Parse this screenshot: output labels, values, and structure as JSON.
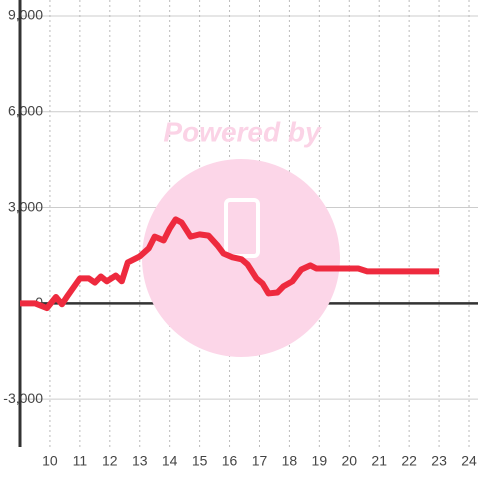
{
  "chart_data": {
    "type": "line",
    "watermark": "Powered by",
    "x": [
      9.0,
      9.5,
      9.9,
      10.2,
      10.4,
      10.6,
      11.0,
      11.3,
      11.5,
      11.7,
      11.9,
      12.2,
      12.4,
      12.6,
      13.0,
      13.3,
      13.5,
      13.8,
      14.0,
      14.2,
      14.4,
      14.7,
      15.0,
      15.3,
      15.6,
      15.8,
      16.1,
      16.4,
      16.6,
      16.9,
      17.1,
      17.3,
      17.6,
      17.8,
      18.1,
      18.4,
      18.7,
      18.9,
      19.5,
      20.0,
      20.3,
      20.6,
      21.0,
      22.0,
      23.0
    ],
    "series": [
      {
        "color": "#ee2a3e",
        "values": [
          0,
          0,
          -150,
          200,
          -30,
          250,
          780,
          780,
          650,
          840,
          690,
          870,
          690,
          1280,
          1470,
          1720,
          2090,
          1970,
          2340,
          2630,
          2530,
          2090,
          2160,
          2120,
          1810,
          1560,
          1440,
          1380,
          1220,
          780,
          625,
          310,
          340,
          530,
          690,
          1060,
          1190,
          1090,
          1090,
          1090,
          1090,
          1000,
          1000,
          1000,
          1000
        ]
      }
    ],
    "xlim": [
      9,
      24.3
    ],
    "xticks": [
      10,
      11,
      12,
      13,
      14,
      15,
      16,
      17,
      18,
      19,
      20,
      21,
      22,
      23,
      24
    ],
    "ylim": [
      -4500,
      9000
    ],
    "yticks": [
      {
        "value": -3000,
        "label": "-3,000"
      },
      0,
      {
        "value": 3000,
        "label": "3,000"
      },
      {
        "value": 6000,
        "label": "6,000"
      },
      {
        "value": 9000,
        "label": "9,000"
      }
    ],
    "grid": true
  }
}
